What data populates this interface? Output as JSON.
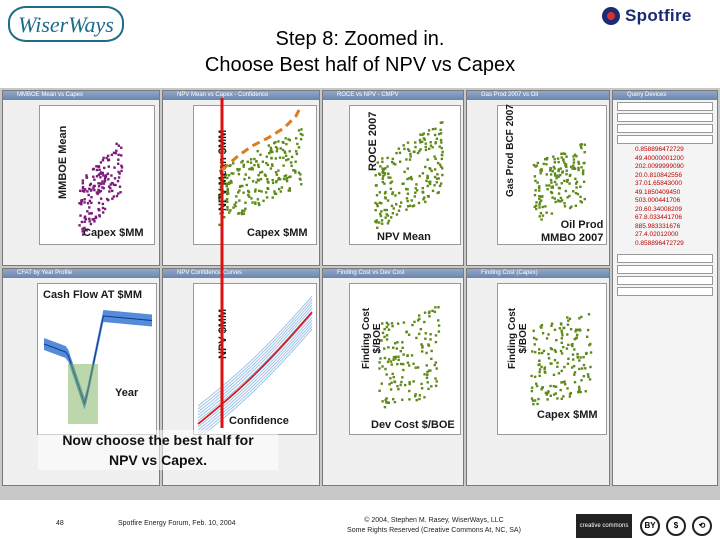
{
  "logo_left": "WiserWays",
  "logo_right": "Spotfire",
  "slide_title": {
    "line1": "Step 8: Zoomed in.",
    "line2": "Choose Best half of NPV vs Capex"
  },
  "panels": [
    {
      "id": "p1",
      "ylabel": "MMBOE Mean",
      "xlabel": "Capex $MM"
    },
    {
      "id": "p2",
      "ylabel": "NPV Mean $MM",
      "xlabel": "Capex $MM"
    },
    {
      "id": "p3",
      "ylabel": "ROCE 2007",
      "xlabel": "NPV Mean"
    },
    {
      "id": "p4",
      "ylabel": "Gas Prod BCF 2007",
      "xlabel_line1": "Oil Prod",
      "xlabel_line2": "MMBO 2007"
    },
    {
      "id": "p5",
      "ylabel": "Cash Flow AT $MM",
      "xlabel": "Year"
    },
    {
      "id": "p6",
      "ylabel": "NPV $MM",
      "xlabel": "Confidence"
    },
    {
      "id": "p7",
      "ylabel_line1": "Finding Cost",
      "ylabel_line2": "$/BOE",
      "xlabel": "Dev Cost $/BOE"
    },
    {
      "id": "p8",
      "ylabel_line1": "Finding Cost",
      "ylabel_line2": "$/BOE",
      "xlabel": "Capex $MM"
    }
  ],
  "side_values": [
    "0.858896472729",
    "49.40000001200",
    "202.0099999090",
    "20.0.810842556",
    "37.01.65843000",
    "49.1850409450",
    "503.000441706",
    "20.60.34008209",
    "67.8.033441706",
    "885.983331676",
    "27.4.02012000",
    "0.858896472729"
  ],
  "colors": {
    "scatter_purple": "#7a1a7a",
    "scatter_green": "#5f8a1a",
    "band_blue": "#2a6fd0",
    "line_red": "#d42020",
    "dashed_orange": "#e07a20",
    "red_line": "#e01010"
  },
  "instruction": {
    "line1": "Now choose the best half for",
    "line2": "NPV vs Capex."
  },
  "footer": {
    "slide_number": "48",
    "event": "Spotfire Energy Forum, Feb. 10, 2004",
    "copyright_line1": "© 2004, Stephen M. Rasey, WiserWays, LLC",
    "copyright_line2": "Some Rights Reserved (Creative Commons At, NC, SA)",
    "cc_label": "creative commons"
  }
}
